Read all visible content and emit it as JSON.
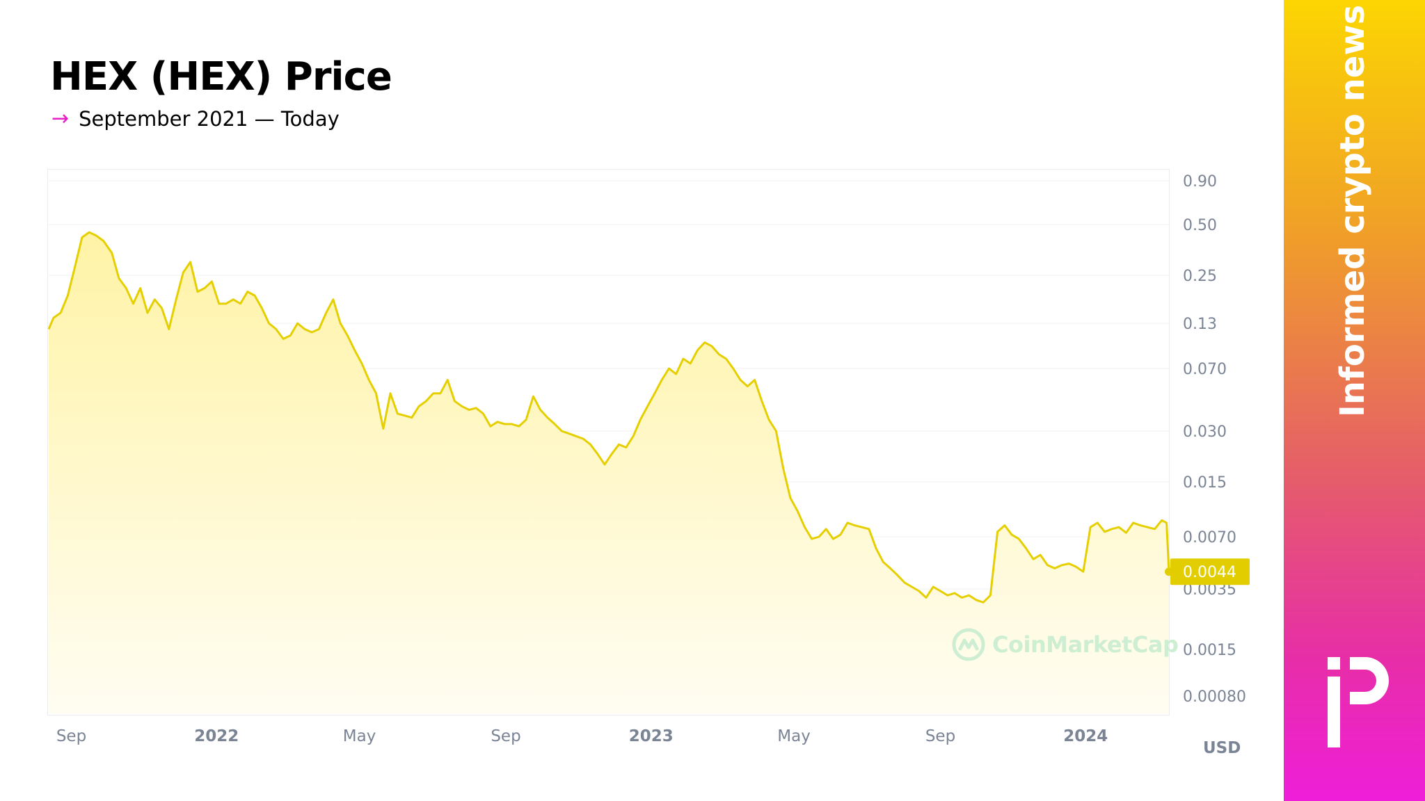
{
  "header": {
    "title": "HEX (HEX) Price",
    "subtitle_arrow": "→",
    "subtitle": "September 2021 — Today"
  },
  "side_panel": {
    "tagline": "Informed crypto news",
    "logo_icon": "publisher-logo-icon"
  },
  "watermark": {
    "text": "CoinMarketCap",
    "icon": "coinmarketcap-logo-icon"
  },
  "colors": {
    "line": "#e5cf00",
    "area_top": "#fff3a6",
    "area_bottom": "#fffdf2",
    "price_badge": "#e2ce00",
    "grid": "#f1f1f1",
    "axis_text": "#7b8494",
    "volume": "#dcdcdc",
    "panel_gradient": [
      "#fcd602",
      "#f0a126",
      "#e55c6b",
      "#e72ea7",
      "#ef1ed9"
    ]
  },
  "chart_data": {
    "type": "area",
    "currency_label": "USD",
    "y_scale": "log",
    "y_ticks": [
      "0.90",
      "0.50",
      "0.25",
      "0.13",
      "0.070",
      "0.030",
      "0.015",
      "0.0070",
      "0.0035",
      "0.0015",
      "0.00080"
    ],
    "x_ticks": [
      {
        "label": "Sep",
        "date": "2021-09-01",
        "bold": false
      },
      {
        "label": "2022",
        "date": "2022-01-01",
        "bold": true
      },
      {
        "label": "May",
        "date": "2022-05-01",
        "bold": false
      },
      {
        "label": "Sep",
        "date": "2022-09-01",
        "bold": false
      },
      {
        "label": "2023",
        "date": "2023-01-01",
        "bold": true
      },
      {
        "label": "May",
        "date": "2023-05-01",
        "bold": false
      },
      {
        "label": "Sep",
        "date": "2023-09-01",
        "bold": false
      },
      {
        "label": "2024",
        "date": "2024-01-01",
        "bold": true
      }
    ],
    "x_range": [
      "2021-08-13",
      "2024-03-11"
    ],
    "current_price": "0.0044",
    "series": [
      {
        "points": [
          [
            "2021-08-13",
            0.12
          ],
          [
            "2021-08-17",
            0.14
          ],
          [
            "2021-08-23",
            0.15
          ],
          [
            "2021-08-29",
            0.19
          ],
          [
            "2021-09-04",
            0.28
          ],
          [
            "2021-09-10",
            0.42
          ],
          [
            "2021-09-16",
            0.45
          ],
          [
            "2021-09-22",
            0.43
          ],
          [
            "2021-09-28",
            0.4
          ],
          [
            "2021-10-05",
            0.34
          ],
          [
            "2021-10-11",
            0.24
          ],
          [
            "2021-10-17",
            0.21
          ],
          [
            "2021-10-23",
            0.17
          ],
          [
            "2021-10-29",
            0.21
          ],
          [
            "2021-11-04",
            0.15
          ],
          [
            "2021-11-10",
            0.18
          ],
          [
            "2021-11-16",
            0.16
          ],
          [
            "2021-11-22",
            0.12
          ],
          [
            "2021-11-28",
            0.18
          ],
          [
            "2021-12-04",
            0.26
          ],
          [
            "2021-12-10",
            0.3
          ],
          [
            "2021-12-16",
            0.2
          ],
          [
            "2021-12-22",
            0.21
          ],
          [
            "2021-12-28",
            0.23
          ],
          [
            "2022-01-03",
            0.17
          ],
          [
            "2022-01-09",
            0.17
          ],
          [
            "2022-01-15",
            0.18
          ],
          [
            "2022-01-21",
            0.17
          ],
          [
            "2022-01-27",
            0.2
          ],
          [
            "2022-02-02",
            0.19
          ],
          [
            "2022-02-08",
            0.16
          ],
          [
            "2022-02-14",
            0.13
          ],
          [
            "2022-02-20",
            0.12
          ],
          [
            "2022-02-26",
            0.105
          ],
          [
            "2022-03-04",
            0.11
          ],
          [
            "2022-03-10",
            0.13
          ],
          [
            "2022-03-16",
            0.12
          ],
          [
            "2022-03-22",
            0.115
          ],
          [
            "2022-03-28",
            0.12
          ],
          [
            "2022-04-03",
            0.15
          ],
          [
            "2022-04-09",
            0.18
          ],
          [
            "2022-04-15",
            0.13
          ],
          [
            "2022-04-21",
            0.11
          ],
          [
            "2022-04-27",
            0.09
          ],
          [
            "2022-05-03",
            0.075
          ],
          [
            "2022-05-09",
            0.06
          ],
          [
            "2022-05-15",
            0.05
          ],
          [
            "2022-05-21",
            0.031
          ],
          [
            "2022-05-27",
            0.05
          ],
          [
            "2022-06-02",
            0.038
          ],
          [
            "2022-06-08",
            0.037
          ],
          [
            "2022-06-14",
            0.036
          ],
          [
            "2022-06-20",
            0.042
          ],
          [
            "2022-06-26",
            0.045
          ],
          [
            "2022-07-02",
            0.05
          ],
          [
            "2022-07-08",
            0.05
          ],
          [
            "2022-07-14",
            0.06
          ],
          [
            "2022-07-20",
            0.045
          ],
          [
            "2022-07-26",
            0.042
          ],
          [
            "2022-08-01",
            0.04
          ],
          [
            "2022-08-07",
            0.041
          ],
          [
            "2022-08-13",
            0.038
          ],
          [
            "2022-08-19",
            0.032
          ],
          [
            "2022-08-25",
            0.034
          ],
          [
            "2022-08-31",
            0.033
          ],
          [
            "2022-09-06",
            0.033
          ],
          [
            "2022-09-12",
            0.032
          ],
          [
            "2022-09-18",
            0.035
          ],
          [
            "2022-09-24",
            0.048
          ],
          [
            "2022-09-30",
            0.04
          ],
          [
            "2022-10-06",
            0.036
          ],
          [
            "2022-10-12",
            0.033
          ],
          [
            "2022-10-18",
            0.03
          ],
          [
            "2022-10-24",
            0.029
          ],
          [
            "2022-10-30",
            0.028
          ],
          [
            "2022-11-05",
            0.027
          ],
          [
            "2022-11-11",
            0.025
          ],
          [
            "2022-11-17",
            0.022
          ],
          [
            "2022-11-23",
            0.019
          ],
          [
            "2022-11-29",
            0.022
          ],
          [
            "2022-12-05",
            0.025
          ],
          [
            "2022-12-11",
            0.024
          ],
          [
            "2022-12-17",
            0.028
          ],
          [
            "2022-12-23",
            0.035
          ],
          [
            "2022-12-29",
            0.042
          ],
          [
            "2023-01-04",
            0.05
          ],
          [
            "2023-01-10",
            0.06
          ],
          [
            "2023-01-16",
            0.07
          ],
          [
            "2023-01-22",
            0.065
          ],
          [
            "2023-01-28",
            0.08
          ],
          [
            "2023-02-03",
            0.075
          ],
          [
            "2023-02-09",
            0.09
          ],
          [
            "2023-02-15",
            0.1
          ],
          [
            "2023-02-21",
            0.095
          ],
          [
            "2023-02-27",
            0.085
          ],
          [
            "2023-03-05",
            0.08
          ],
          [
            "2023-03-11",
            0.07
          ],
          [
            "2023-03-17",
            0.06
          ],
          [
            "2023-03-23",
            0.055
          ],
          [
            "2023-03-29",
            0.06
          ],
          [
            "2023-04-04",
            0.045
          ],
          [
            "2023-04-10",
            0.035
          ],
          [
            "2023-04-16",
            0.03
          ],
          [
            "2023-04-22",
            0.018
          ],
          [
            "2023-04-28",
            0.012
          ],
          [
            "2023-05-04",
            0.01
          ],
          [
            "2023-05-10",
            0.008
          ],
          [
            "2023-05-16",
            0.0068
          ],
          [
            "2023-05-22",
            0.007
          ],
          [
            "2023-05-28",
            0.0078
          ],
          [
            "2023-06-03",
            0.0068
          ],
          [
            "2023-06-09",
            0.0072
          ],
          [
            "2023-06-15",
            0.0085
          ],
          [
            "2023-06-21",
            0.0082
          ],
          [
            "2023-06-27",
            0.008
          ],
          [
            "2023-07-03",
            0.0078
          ],
          [
            "2023-07-09",
            0.006
          ],
          [
            "2023-07-15",
            0.005
          ],
          [
            "2023-07-21",
            0.0046
          ],
          [
            "2023-07-27",
            0.0042
          ],
          [
            "2023-08-02",
            0.0038
          ],
          [
            "2023-08-08",
            0.0036
          ],
          [
            "2023-08-14",
            0.0034
          ],
          [
            "2023-08-20",
            0.0031
          ],
          [
            "2023-08-26",
            0.0036
          ],
          [
            "2023-09-01",
            0.0034
          ],
          [
            "2023-09-07",
            0.0032
          ],
          [
            "2023-09-13",
            0.0033
          ],
          [
            "2023-09-19",
            0.0031
          ],
          [
            "2023-09-25",
            0.0032
          ],
          [
            "2023-10-01",
            0.003
          ],
          [
            "2023-10-07",
            0.0029
          ],
          [
            "2023-10-13",
            0.0032
          ],
          [
            "2023-10-19",
            0.0075
          ],
          [
            "2023-10-25",
            0.0082
          ],
          [
            "2023-10-31",
            0.0072
          ],
          [
            "2023-11-06",
            0.0068
          ],
          [
            "2023-11-12",
            0.006
          ],
          [
            "2023-11-18",
            0.0052
          ],
          [
            "2023-11-24",
            0.0055
          ],
          [
            "2023-11-30",
            0.0048
          ],
          [
            "2023-12-06",
            0.0046
          ],
          [
            "2023-12-12",
            0.0048
          ],
          [
            "2023-12-18",
            0.0049
          ],
          [
            "2023-12-24",
            0.0047
          ],
          [
            "2023-12-30",
            0.0044
          ],
          [
            "2024-01-05",
            0.008
          ],
          [
            "2024-01-11",
            0.0085
          ],
          [
            "2024-01-17",
            0.0075
          ],
          [
            "2024-01-23",
            0.0078
          ],
          [
            "2024-01-29",
            0.008
          ],
          [
            "2024-02-04",
            0.0074
          ],
          [
            "2024-02-10",
            0.0085
          ],
          [
            "2024-02-16",
            0.0082
          ],
          [
            "2024-02-22",
            0.008
          ],
          [
            "2024-02-28",
            0.0078
          ],
          [
            "2024-03-05",
            0.0088
          ],
          [
            "2024-03-09",
            0.0085
          ],
          [
            "2024-03-11",
            0.0044
          ]
        ]
      }
    ]
  }
}
